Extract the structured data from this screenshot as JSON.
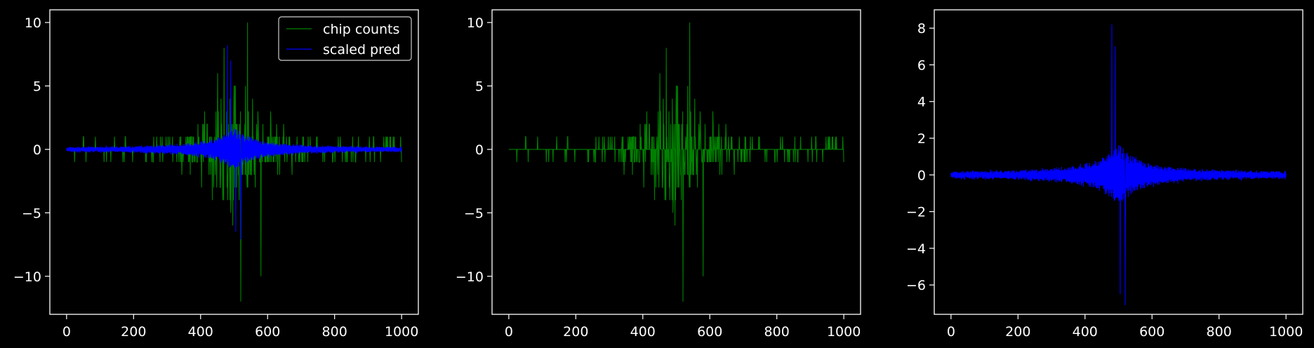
{
  "chart_data": [
    {
      "type": "line",
      "xlim": [
        -50,
        1050
      ],
      "ylim": [
        -13.0,
        11.0
      ],
      "xticks": [
        0,
        200,
        400,
        600,
        800,
        1000
      ],
      "yticks": [
        -10,
        -5,
        0,
        5,
        10
      ],
      "legend": {
        "placement": "top-right",
        "entries": [
          "chip counts",
          "scaled pred"
        ]
      },
      "series": [
        {
          "name": "chip counts",
          "color": "#008000",
          "kind": "chip counts"
        },
        {
          "name": "scaled pred",
          "color": "#0000ff",
          "kind": "scaled pred"
        }
      ]
    },
    {
      "type": "line",
      "xlim": [
        -50,
        1050
      ],
      "ylim": [
        -13.0,
        11.0
      ],
      "xticks": [
        0,
        200,
        400,
        600,
        800,
        1000
      ],
      "yticks": [
        -10,
        -5,
        0,
        5,
        10
      ],
      "series": [
        {
          "color": "#008000",
          "kind": "chip counts"
        }
      ]
    },
    {
      "type": "line",
      "xlim": [
        -50,
        1050
      ],
      "ylim": [
        -7.6,
        9.0
      ],
      "xticks": [
        0,
        200,
        400,
        600,
        800,
        1000
      ],
      "yticks": [
        -6,
        -4,
        -2,
        0,
        2,
        4,
        6,
        8
      ],
      "series": [
        {
          "color": "#0000ff",
          "kind": "scaled pred"
        }
      ]
    }
  ],
  "colors": {
    "background": "#000000",
    "axes": "#ffffff",
    "counts": "#008000",
    "pred": "#0000ff"
  }
}
